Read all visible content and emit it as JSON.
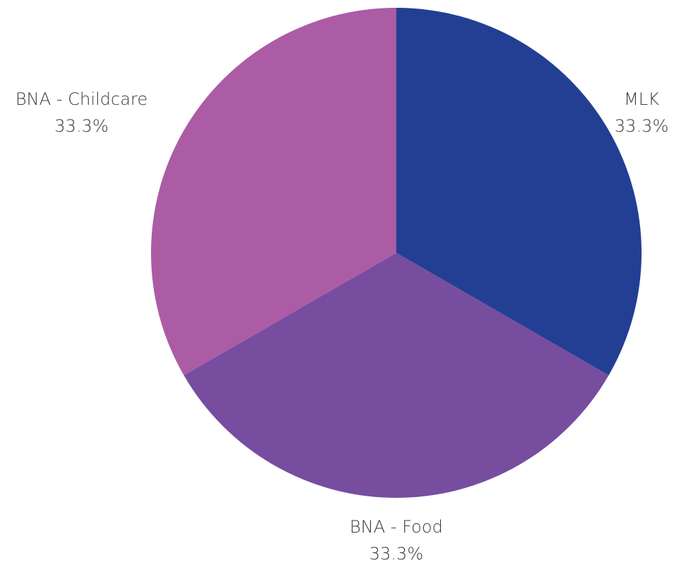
{
  "chart_data": {
    "type": "pie",
    "title": "",
    "slices": [
      {
        "label": "MLK",
        "value": 33.3,
        "percent_label": "33.3%",
        "color": "#233f93"
      },
      {
        "label": "BNA - Food",
        "value": 33.3,
        "percent_label": "33.3%",
        "color": "#774da0"
      },
      {
        "label": "BNA - Childcare",
        "value": 33.3,
        "percent_label": "33.3%",
        "color": "#ab5ca5"
      }
    ],
    "start_angle": "12 o'clock",
    "direction": "clockwise",
    "legend": "none",
    "labels": "outside slices, name above percent"
  }
}
